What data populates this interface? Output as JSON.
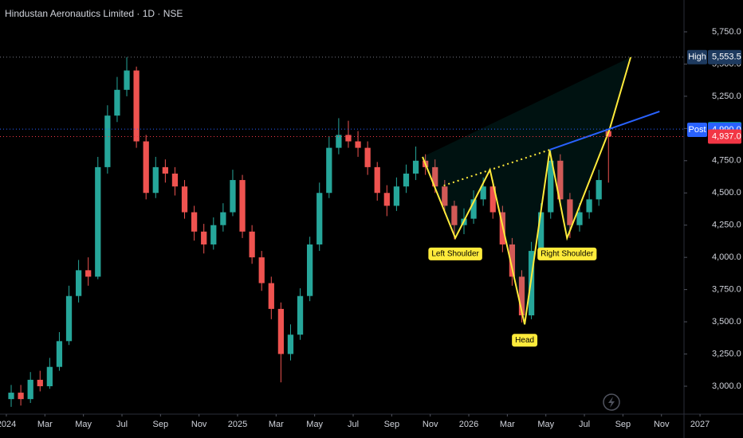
{
  "chart_data": {
    "type": "candlestick",
    "title": "Hindustan Aeronautics Limited · 1D · NSE",
    "x": [
      0.25,
      0.75,
      1.25,
      1.75,
      2.25,
      2.75,
      3.25,
      3.75,
      4.25,
      4.75,
      5.25,
      5.75,
      6.25,
      6.75,
      7.25,
      7.75,
      8.25,
      8.75,
      9.25,
      9.75,
      10.25,
      10.75,
      11.25,
      11.75,
      12.25,
      12.75,
      13.25,
      13.75,
      14.25,
      14.75,
      15.25,
      15.75,
      16.25,
      16.75,
      17.25,
      17.75,
      18.25,
      18.75,
      19.25,
      19.75,
      20.25,
      20.75,
      21.25,
      21.75,
      22.25,
      22.75,
      23.25,
      23.75,
      24.25,
      24.75,
      25.25,
      25.75,
      26.25,
      26.75,
      27.25,
      27.75,
      28.25,
      28.75,
      29.25,
      29.75,
      30.25,
      30.75,
      31.25
    ],
    "open": [
      2900,
      2950,
      2900,
      3050,
      3000,
      3150,
      3350,
      3700,
      3900,
      3850,
      4700,
      5100,
      5300,
      5450,
      4900,
      4500,
      4700,
      4650,
      4550,
      4350,
      4200,
      4100,
      4250,
      4350,
      4600,
      4200,
      4000,
      3800,
      3600,
      3250,
      3400,
      3700,
      4100,
      4500,
      4850,
      4950,
      4900,
      4850,
      4700,
      4500,
      4400,
      4550,
      4650,
      4750,
      4700,
      4550,
      4400,
      4250,
      4300,
      4450,
      4550,
      4350,
      4100,
      3850,
      3550,
      4050,
      4350,
      4750,
      4450,
      4250,
      4350,
      4450,
      4980
    ],
    "high": [
      3010,
      3010,
      3110,
      3120,
      3220,
      3420,
      3780,
      3980,
      4000,
      4780,
      5180,
      5400,
      5553.5,
      5480,
      4950,
      4780,
      4760,
      4700,
      4600,
      4400,
      4260,
      4310,
      4420,
      4680,
      4640,
      4250,
      4050,
      3850,
      3650,
      3480,
      3760,
      4160,
      4580,
      4940,
      5080,
      5060,
      4980,
      4900,
      4740,
      4560,
      4620,
      4720,
      4860,
      4800,
      4760,
      4600,
      4440,
      4380,
      4520,
      4620,
      4600,
      4400,
      4150,
      3900,
      4120,
      4420,
      4830,
      4800,
      4500,
      4420,
      4520,
      4680,
      5000
    ],
    "low": [
      2840,
      2850,
      2870,
      2960,
      2980,
      3120,
      3320,
      3650,
      3780,
      3830,
      4650,
      5050,
      5250,
      4850,
      4450,
      4460,
      4580,
      4480,
      4300,
      4130,
      4030,
      4060,
      4200,
      4320,
      4150,
      3950,
      3740,
      3520,
      3030,
      3200,
      3360,
      3660,
      4050,
      4460,
      4800,
      4850,
      4780,
      4640,
      4440,
      4320,
      4360,
      4500,
      4600,
      4640,
      4500,
      4340,
      4140,
      4180,
      4260,
      4400,
      4300,
      4040,
      3780,
      3495,
      3520,
      4000,
      4300,
      4400,
      4150,
      4200,
      4300,
      4400,
      4580
    ],
    "close": [
      2950,
      2900,
      3050,
      3000,
      3150,
      3350,
      3700,
      3900,
      3850,
      4700,
      5100,
      5300,
      5450,
      4900,
      4500,
      4700,
      4650,
      4550,
      4350,
      4200,
      4100,
      4250,
      4350,
      4600,
      4200,
      4000,
      3800,
      3600,
      3250,
      3400,
      3700,
      4100,
      4500,
      4850,
      4950,
      4900,
      4850,
      4700,
      4500,
      4400,
      4550,
      4650,
      4750,
      4700,
      4550,
      4400,
      4250,
      4300,
      4450,
      4550,
      4350,
      4100,
      3850,
      3550,
      4050,
      4350,
      4750,
      4450,
      4250,
      4350,
      4450,
      4600,
      4937
    ],
    "up_color": "#26a69a",
    "down_color": "#ef5350",
    "xlim": [
      -0.33,
      35.17
    ],
    "xticks": [
      {
        "value": 0,
        "label": "2024"
      },
      {
        "value": 2,
        "label": "Mar"
      },
      {
        "value": 4,
        "label": "May"
      },
      {
        "value": 6,
        "label": "Jul"
      },
      {
        "value": 8,
        "label": "Sep"
      },
      {
        "value": 10,
        "label": "Nov"
      },
      {
        "value": 12,
        "label": "2025"
      },
      {
        "value": 14,
        "label": "Mar"
      },
      {
        "value": 16,
        "label": "May"
      },
      {
        "value": 18,
        "label": "Jul"
      },
      {
        "value": 20,
        "label": "Sep"
      },
      {
        "value": 22,
        "label": "Nov"
      },
      {
        "value": 24,
        "label": "2026"
      },
      {
        "value": 26,
        "label": "Mar"
      },
      {
        "value": 28,
        "label": "May"
      },
      {
        "value": 30,
        "label": "Jul"
      },
      {
        "value": 32,
        "label": "Sep"
      },
      {
        "value": 34,
        "label": "Nov"
      },
      {
        "value": 36,
        "label": "2027"
      }
    ],
    "ylim": [
      2796,
      5997
    ],
    "yticks": [
      {
        "value": 3000,
        "label": "3,000.0"
      },
      {
        "value": 3250,
        "label": "3,250.0"
      },
      {
        "value": 3500,
        "label": "3,500.0"
      },
      {
        "value": 3750,
        "label": "3,750.0"
      },
      {
        "value": 4000,
        "label": "4,000.0"
      },
      {
        "value": 4250,
        "label": "4,250.0"
      },
      {
        "value": 4500,
        "label": "4,500.0"
      },
      {
        "value": 4750,
        "label": "4,750.0"
      },
      {
        "value": 5000,
        "label": "5,000.0"
      },
      {
        "value": 5250,
        "label": "5,250.0"
      },
      {
        "value": 5500,
        "label": "5,500.0"
      },
      {
        "value": 5750,
        "label": "5,750.0"
      }
    ],
    "pattern": {
      "x": [
        21.6,
        23.3,
        25.1,
        26.9,
        28.2,
        29.1,
        31.3,
        32.4
      ],
      "y": [
        4780,
        4150,
        4680,
        3480,
        4830,
        4150,
        4990,
        5553
      ],
      "color": "#ffeb3b"
    },
    "neckline": {
      "x": [
        22.7,
        28.2
      ],
      "y": [
        4557,
        4835
      ],
      "color": "#ffeb3b"
    },
    "trendline": {
      "x": [
        28.2,
        33.9
      ],
      "y": [
        4835,
        5132
      ],
      "color": "#2962ff"
    },
    "annotations": [
      {
        "text": "Left Shoulder",
        "x": 23.3,
        "y": 4150
      },
      {
        "text": "Head",
        "x": 26.9,
        "y": 3480
      },
      {
        "text": "Right Shoulder",
        "x": 29.1,
        "y": 4150
      }
    ],
    "price_lines": [
      {
        "label": "High",
        "value": 5553.5,
        "value_label": "5,553.5",
        "color": "#1e3a5f",
        "line": "#787b86"
      },
      {
        "value": 4995,
        "value_label": "4,995.0",
        "color": "#089981",
        "line": "#2962ff"
      },
      {
        "label": "Post",
        "value": 4990,
        "value_label": "4,990.0",
        "color": "#2962ff"
      },
      {
        "value": 4937,
        "value_label": "4,937.0",
        "color": "#f23645",
        "line": "#f23645"
      }
    ]
  }
}
